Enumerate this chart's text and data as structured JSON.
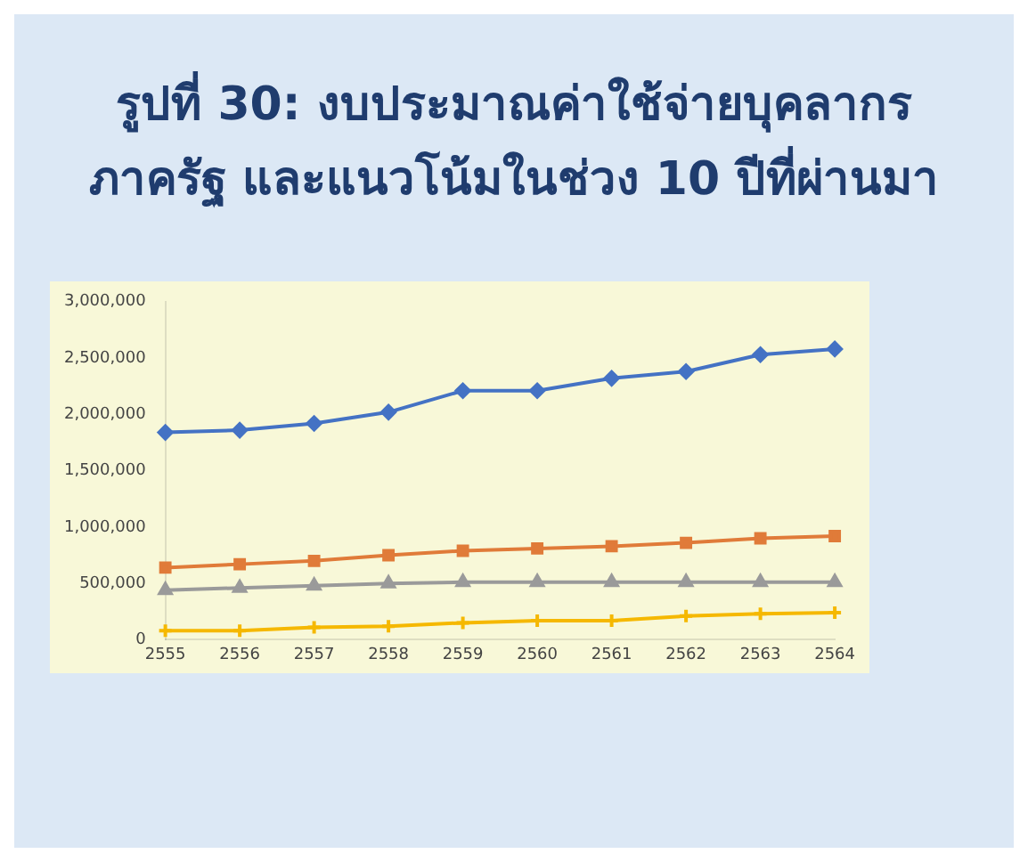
{
  "chart_data": {
    "type": "line",
    "title": "รูปที่ 30: งบประมาณค่าใช้จ่ายบุคลากรภาครัฐ และแนวโน้มในช่วง 10 ปีที่ผ่านมา",
    "categories": [
      "2555",
      "2556",
      "2557",
      "2558",
      "2559",
      "2560",
      "2561",
      "2562",
      "2563",
      "2564"
    ],
    "series": [
      {
        "color": "#4472c4",
        "marker": "diamond",
        "values": [
          1840000,
          1860000,
          1920000,
          2020000,
          2210000,
          2210000,
          2320000,
          2380000,
          2530000,
          2580000
        ]
      },
      {
        "color": "#e07b39",
        "marker": "square",
        "values": [
          640000,
          670000,
          700000,
          750000,
          790000,
          810000,
          830000,
          860000,
          900000,
          920000
        ]
      },
      {
        "color": "#9a9a9a",
        "marker": "triangle",
        "values": [
          440000,
          460000,
          480000,
          500000,
          510000,
          510000,
          510000,
          510000,
          510000,
          510000
        ]
      },
      {
        "color": "#f5b800",
        "marker": "cross",
        "values": [
          80000,
          80000,
          110000,
          120000,
          150000,
          170000,
          170000,
          210000,
          230000,
          240000
        ]
      }
    ],
    "ylim": [
      0,
      3000000
    ],
    "yticks": [
      {
        "value": 0,
        "label": "0"
      },
      {
        "value": 500000,
        "label": "500,000"
      },
      {
        "value": 1000000,
        "label": "1,000,000"
      },
      {
        "value": 1500000,
        "label": "1,500,000"
      },
      {
        "value": 2000000,
        "label": "2,000,000"
      },
      {
        "value": 2500000,
        "label": "2,500,000"
      },
      {
        "value": 3000000,
        "label": "3,000,000"
      }
    ],
    "legend": false,
    "grid": false
  }
}
